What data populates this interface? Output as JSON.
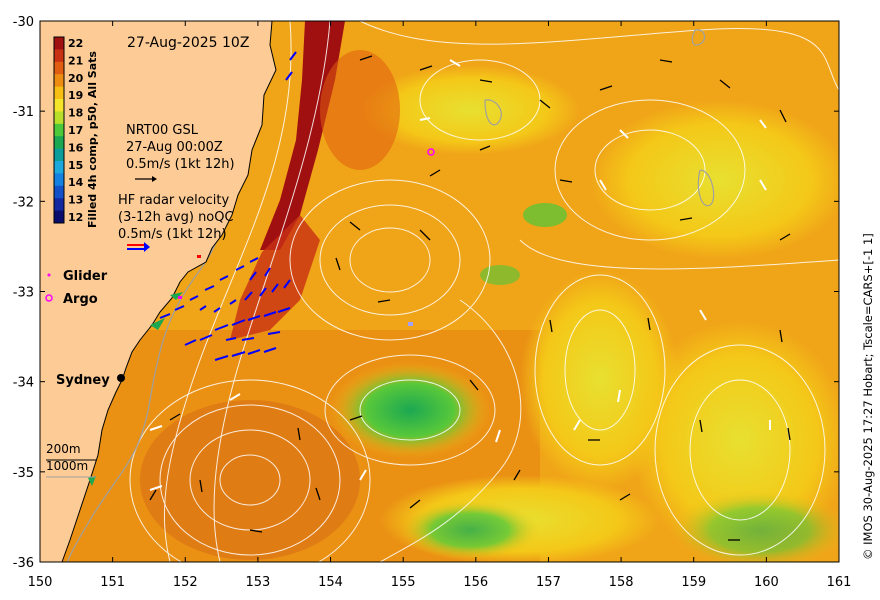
{
  "map": {
    "timestamp": "27-Aug-2025 10Z",
    "credit": "© IMOS 30-Aug-2025 17:27 Hobart; Tscale=CARS+[-1 1]",
    "lon_ticks": [
      "150",
      "151",
      "152",
      "153",
      "154",
      "155",
      "156",
      "157",
      "158",
      "159",
      "160",
      "161"
    ],
    "lat_ticks": [
      "-30",
      "-31",
      "-32",
      "-33",
      "-34",
      "-35",
      "-36"
    ],
    "lon_range": [
      150,
      161
    ],
    "lat_range": [
      -36,
      -30
    ],
    "colorbar": {
      "title": "Filled 4h comp, p50, All Sats",
      "ticks": [
        "22",
        "21",
        "20",
        "19",
        "18",
        "17",
        "16",
        "15",
        "14",
        "13",
        "12"
      ],
      "colors": [
        "#a01010",
        "#c83014",
        "#e05c10",
        "#ee8c12",
        "#f7be14",
        "#f4e42a",
        "#b8e02a",
        "#4cc83a",
        "#1ca852",
        "#0c9c9a",
        "#1ca8dc",
        "#1480e0",
        "#1450c8",
        "#1428a0",
        "#0c0c6c"
      ]
    },
    "gsl_legend": {
      "title": "NRT00 GSL",
      "date": "27-Aug 00:00Z",
      "scale": "0.5m/s (1kt 12h)"
    },
    "hf_legend": {
      "line1": "HF radar velocity",
      "line2": "(3-12h avg) noQC",
      "scale": "0.5m/s (1kt 12h)"
    },
    "markers": {
      "glider": "Glider",
      "argo": "Argo"
    },
    "city": "Sydney",
    "isobaths": {
      "shallow": "200m",
      "deep": "1000m"
    },
    "colors": {
      "land": "#fdcb95",
      "glider": "#ff00ff",
      "hf_arrow": "#0000ff",
      "contour": "#ffffff"
    }
  }
}
